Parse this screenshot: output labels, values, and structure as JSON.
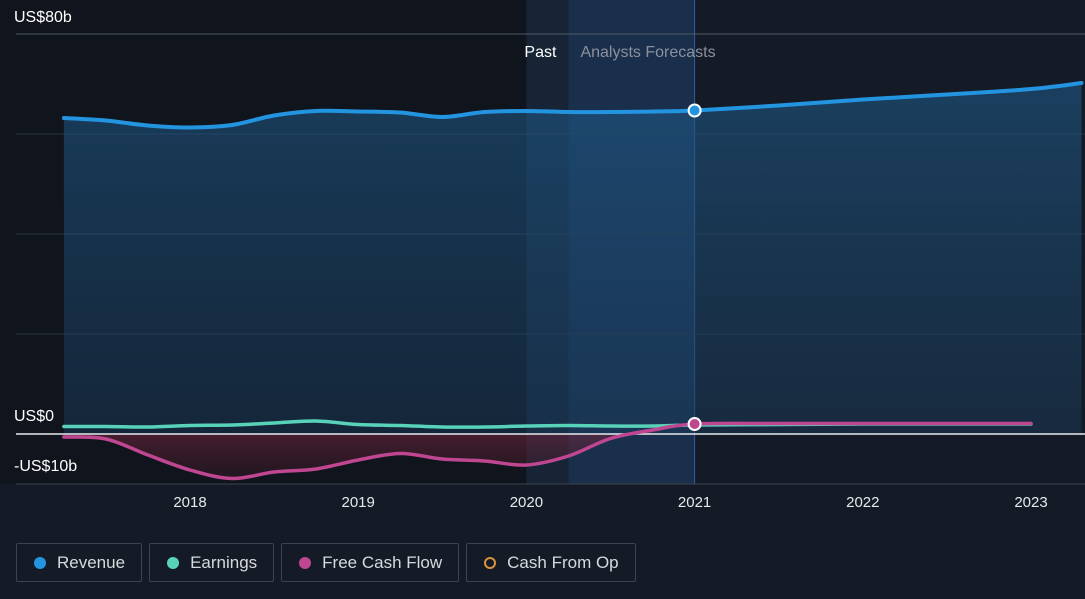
{
  "chart_data": {
    "type": "line",
    "y_label_top": "US$80b",
    "y_label_zero": "US$0",
    "y_label_bottom": "-US$10b",
    "ylim": [
      -10,
      80
    ],
    "xlim": [
      2017.0,
      2023.3
    ],
    "x_ticks": [
      "2018",
      "2019",
      "2020",
      "2021",
      "2022",
      "2023"
    ],
    "period_labels": {
      "past": "Past",
      "forecast": "Analysts Forecasts"
    },
    "series": [
      {
        "name": "Revenue",
        "color": "#2394df",
        "x": [
          2017.25,
          2017.5,
          2017.75,
          2018.0,
          2018.25,
          2018.5,
          2018.75,
          2019.0,
          2019.25,
          2019.5,
          2019.75,
          2020.0,
          2020.25,
          2020.5,
          2020.75,
          2021.0,
          2021.5,
          2022.0,
          2022.5,
          2023.0,
          2023.3
        ],
        "y": [
          63.2,
          62.7,
          61.7,
          61.3,
          61.8,
          63.7,
          64.6,
          64.5,
          64.3,
          63.4,
          64.4,
          64.6,
          64.4,
          64.4,
          64.5,
          64.7,
          65.7,
          66.9,
          67.9,
          69.0,
          70.2
        ]
      },
      {
        "name": "Earnings",
        "color": "#58d2b9",
        "x": [
          2017.25,
          2017.5,
          2017.75,
          2018.0,
          2018.25,
          2018.5,
          2018.75,
          2019.0,
          2019.25,
          2019.5,
          2019.75,
          2020.0,
          2020.25,
          2020.5,
          2020.75,
          2021.0,
          2021.5,
          2022.0,
          2022.5,
          2023.0
        ],
        "y": [
          1.5,
          1.5,
          1.4,
          1.7,
          1.8,
          2.2,
          2.6,
          1.9,
          1.7,
          1.4,
          1.4,
          1.6,
          1.7,
          1.6,
          1.6,
          1.8,
          1.9,
          2.0,
          2.0,
          2.0
        ]
      },
      {
        "name": "Free Cash Flow",
        "color": "#bf4690",
        "x": [
          2017.25,
          2017.5,
          2017.75,
          2018.0,
          2018.25,
          2018.5,
          2018.75,
          2019.0,
          2019.25,
          2019.5,
          2019.75,
          2020.0,
          2020.25,
          2020.5,
          2020.75,
          2021.0,
          2021.5,
          2022.0,
          2022.5,
          2023.0
        ],
        "y": [
          -0.6,
          -1.0,
          -4.2,
          -7.2,
          -8.9,
          -7.6,
          -7.0,
          -5.2,
          -3.9,
          -5.0,
          -5.4,
          -6.2,
          -4.4,
          -0.9,
          0.8,
          2.0,
          2.1,
          2.1,
          2.1,
          2.1
        ]
      },
      {
        "name": "Cash From Op",
        "color": "#d9933d",
        "x": [],
        "y": []
      }
    ],
    "highlight_points": [
      {
        "series": "Revenue",
        "x": 2021.0,
        "y": 64.7
      },
      {
        "series": "Free Cash Flow",
        "x": 2021.0,
        "y": 2.0
      }
    ],
    "legend": [
      {
        "label": "Revenue",
        "color": "#2394df",
        "style": "filled"
      },
      {
        "label": "Earnings",
        "color": "#58d2b9",
        "style": "filled"
      },
      {
        "label": "Free Cash Flow",
        "color": "#bf4690",
        "style": "filled"
      },
      {
        "label": "Cash From Op",
        "color": "#d9933d",
        "style": "hollow"
      }
    ],
    "grid": true,
    "legend_position": "bottom-left"
  }
}
